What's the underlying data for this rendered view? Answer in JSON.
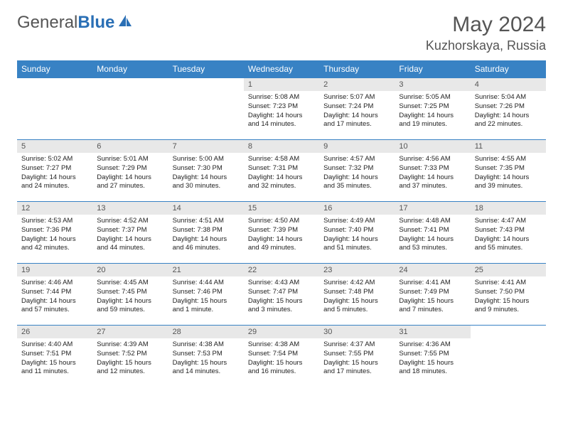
{
  "brand": {
    "part1": "General",
    "part2": "Blue"
  },
  "title": "May 2024",
  "location": "Kuzhorskaya, Russia",
  "colors": {
    "header_bg": "#3882c4",
    "header_text": "#ffffff",
    "daynum_bg": "#e8e8e8",
    "text_color": "#555555",
    "cell_border": "#3882c4"
  },
  "weekdays": [
    "Sunday",
    "Monday",
    "Tuesday",
    "Wednesday",
    "Thursday",
    "Friday",
    "Saturday"
  ],
  "days": [
    {
      "n": 1,
      "sr": "5:08 AM",
      "ss": "7:23 PM",
      "dh": 14,
      "dm": 14
    },
    {
      "n": 2,
      "sr": "5:07 AM",
      "ss": "7:24 PM",
      "dh": 14,
      "dm": 17
    },
    {
      "n": 3,
      "sr": "5:05 AM",
      "ss": "7:25 PM",
      "dh": 14,
      "dm": 19
    },
    {
      "n": 4,
      "sr": "5:04 AM",
      "ss": "7:26 PM",
      "dh": 14,
      "dm": 22
    },
    {
      "n": 5,
      "sr": "5:02 AM",
      "ss": "7:27 PM",
      "dh": 14,
      "dm": 24
    },
    {
      "n": 6,
      "sr": "5:01 AM",
      "ss": "7:29 PM",
      "dh": 14,
      "dm": 27
    },
    {
      "n": 7,
      "sr": "5:00 AM",
      "ss": "7:30 PM",
      "dh": 14,
      "dm": 30
    },
    {
      "n": 8,
      "sr": "4:58 AM",
      "ss": "7:31 PM",
      "dh": 14,
      "dm": 32
    },
    {
      "n": 9,
      "sr": "4:57 AM",
      "ss": "7:32 PM",
      "dh": 14,
      "dm": 35
    },
    {
      "n": 10,
      "sr": "4:56 AM",
      "ss": "7:33 PM",
      "dh": 14,
      "dm": 37
    },
    {
      "n": 11,
      "sr": "4:55 AM",
      "ss": "7:35 PM",
      "dh": 14,
      "dm": 39
    },
    {
      "n": 12,
      "sr": "4:53 AM",
      "ss": "7:36 PM",
      "dh": 14,
      "dm": 42
    },
    {
      "n": 13,
      "sr": "4:52 AM",
      "ss": "7:37 PM",
      "dh": 14,
      "dm": 44
    },
    {
      "n": 14,
      "sr": "4:51 AM",
      "ss": "7:38 PM",
      "dh": 14,
      "dm": 46
    },
    {
      "n": 15,
      "sr": "4:50 AM",
      "ss": "7:39 PM",
      "dh": 14,
      "dm": 49
    },
    {
      "n": 16,
      "sr": "4:49 AM",
      "ss": "7:40 PM",
      "dh": 14,
      "dm": 51
    },
    {
      "n": 17,
      "sr": "4:48 AM",
      "ss": "7:41 PM",
      "dh": 14,
      "dm": 53
    },
    {
      "n": 18,
      "sr": "4:47 AM",
      "ss": "7:43 PM",
      "dh": 14,
      "dm": 55
    },
    {
      "n": 19,
      "sr": "4:46 AM",
      "ss": "7:44 PM",
      "dh": 14,
      "dm": 57
    },
    {
      "n": 20,
      "sr": "4:45 AM",
      "ss": "7:45 PM",
      "dh": 14,
      "dm": 59
    },
    {
      "n": 21,
      "sr": "4:44 AM",
      "ss": "7:46 PM",
      "dh": 15,
      "dm": 1
    },
    {
      "n": 22,
      "sr": "4:43 AM",
      "ss": "7:47 PM",
      "dh": 15,
      "dm": 3
    },
    {
      "n": 23,
      "sr": "4:42 AM",
      "ss": "7:48 PM",
      "dh": 15,
      "dm": 5
    },
    {
      "n": 24,
      "sr": "4:41 AM",
      "ss": "7:49 PM",
      "dh": 15,
      "dm": 7
    },
    {
      "n": 25,
      "sr": "4:41 AM",
      "ss": "7:50 PM",
      "dh": 15,
      "dm": 9
    },
    {
      "n": 26,
      "sr": "4:40 AM",
      "ss": "7:51 PM",
      "dh": 15,
      "dm": 11
    },
    {
      "n": 27,
      "sr": "4:39 AM",
      "ss": "7:52 PM",
      "dh": 15,
      "dm": 12
    },
    {
      "n": 28,
      "sr": "4:38 AM",
      "ss": "7:53 PM",
      "dh": 15,
      "dm": 14
    },
    {
      "n": 29,
      "sr": "4:38 AM",
      "ss": "7:54 PM",
      "dh": 15,
      "dm": 16
    },
    {
      "n": 30,
      "sr": "4:37 AM",
      "ss": "7:55 PM",
      "dh": 15,
      "dm": 17
    },
    {
      "n": 31,
      "sr": "4:36 AM",
      "ss": "7:55 PM",
      "dh": 15,
      "dm": 18
    }
  ],
  "first_weekday_index": 3,
  "fonts": {
    "title_pt": 30,
    "location_pt": 18,
    "header_pt": 12,
    "daynum_pt": 11,
    "body_pt": 9.5
  }
}
